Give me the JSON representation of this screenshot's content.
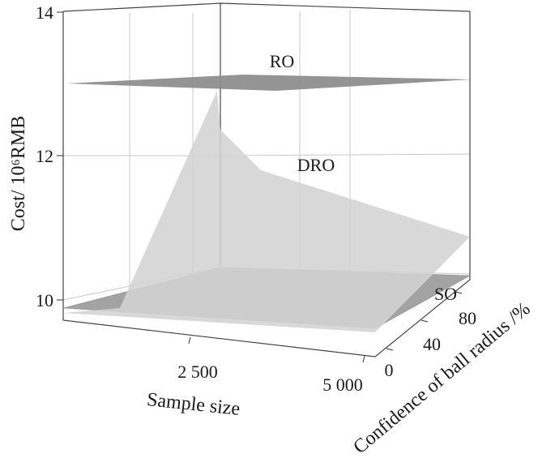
{
  "chart_data": {
    "type": "surface",
    "zlabel": "Cost/ 10⁶RMB",
    "xlabel": "Sample size",
    "ylabel": "Confidence of ball radius /%",
    "z_ticks": [
      "10",
      "12",
      "14"
    ],
    "x_ticks": [
      "2 500",
      "5 000"
    ],
    "y_ticks": [
      "0",
      "40",
      "80"
    ],
    "zlim": [
      9.7,
      14
    ],
    "grid": true,
    "series": [
      {
        "name": "RO",
        "color": "#8c8c8c",
        "z": 12.95
      },
      {
        "name": "DRO",
        "color": "#d0d0d0",
        "z_at_min_sample_min_conf": 9.75,
        "z_peak": 12.85,
        "z_mid": 11.7,
        "z_at_max_sample_max_conf": 10.9
      },
      {
        "name": "SO",
        "color": "#9e9e9e",
        "z": 9.85
      }
    ]
  }
}
